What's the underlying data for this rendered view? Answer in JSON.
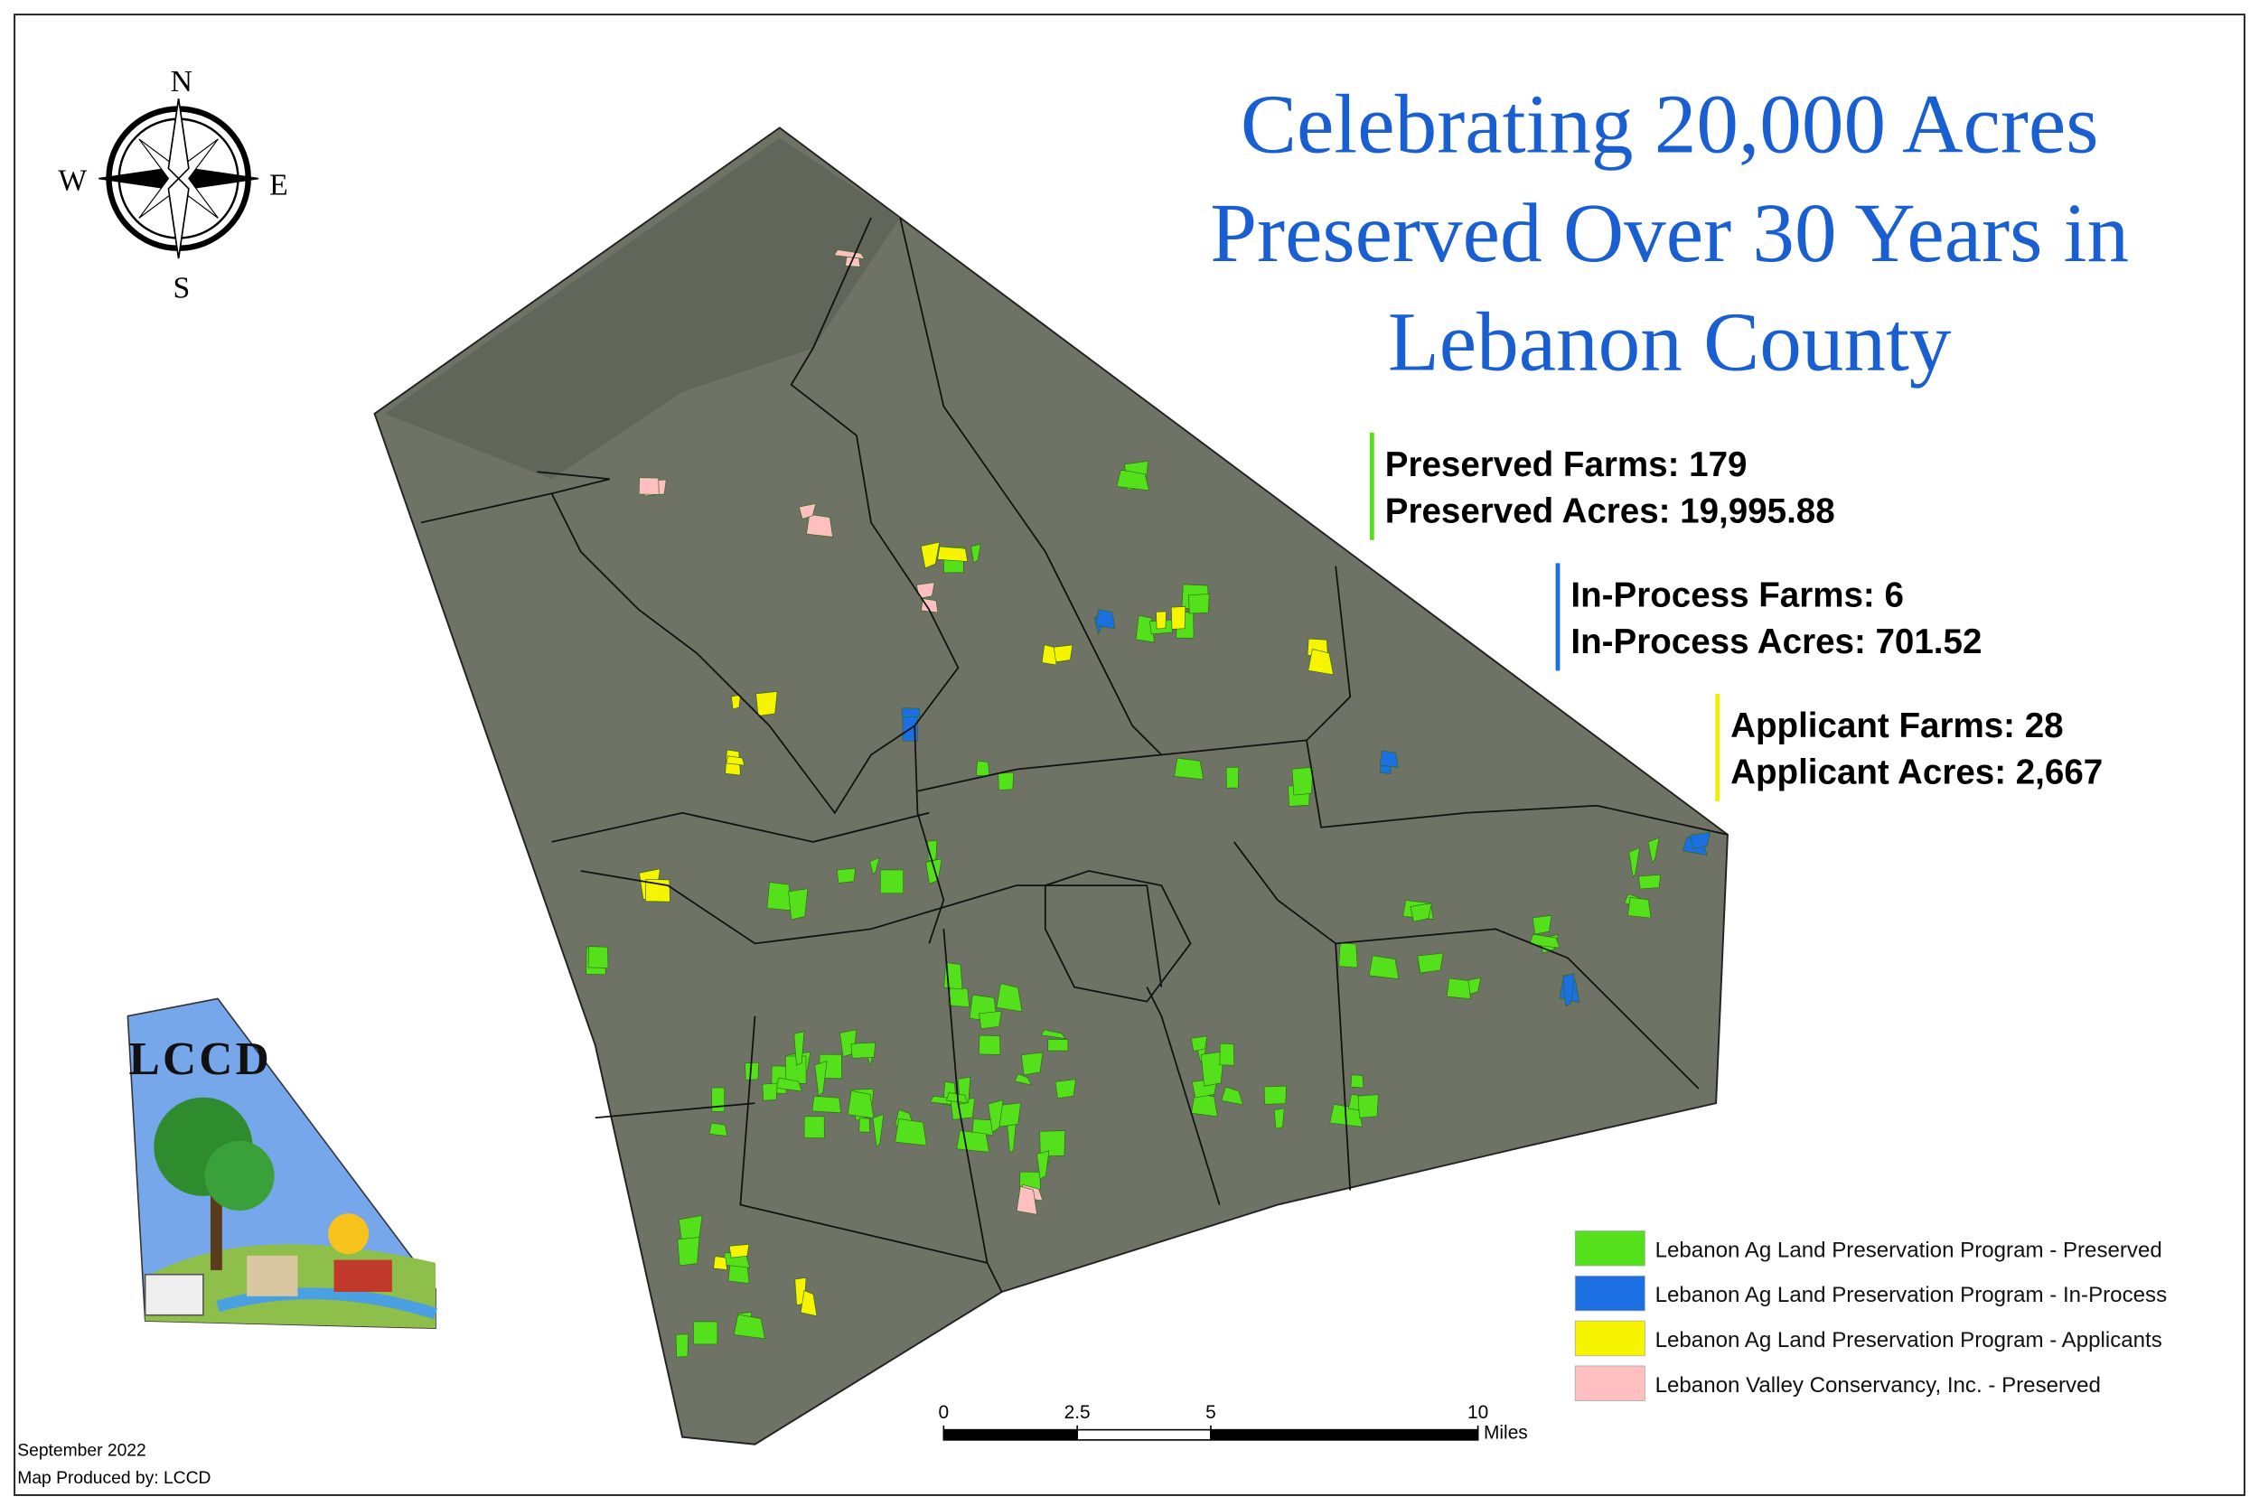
{
  "title": [
    "Celebrating 20,000 Acres",
    "Preserved Over 30 Years in",
    "Lebanon County"
  ],
  "compass": {
    "north": "N",
    "south": "S",
    "east": "E",
    "west": "W"
  },
  "stats": [
    {
      "color": "#55e01c",
      "lines": [
        "Preserved Farms: 179",
        "Preserved Acres: 19,995.88"
      ]
    },
    {
      "color": "#1c6fe0",
      "lines": [
        "In-Process Farms: 6",
        "In-Process Acres: 701.52"
      ]
    },
    {
      "color": "#f2ee00",
      "lines": [
        "Applicant Farms: 28",
        "Applicant Acres: 2,667"
      ]
    }
  ],
  "legend": [
    {
      "color": "#55e01c",
      "label": "Lebanon Ag Land Preservation Program - Preserved"
    },
    {
      "color": "#1c6fe0",
      "label": "Lebanon Ag Land Preservation Program - In-Process"
    },
    {
      "color": "#f7f400",
      "label": "Lebanon Ag Land Preservation Program - Applicants"
    },
    {
      "color": "#ffbfc0",
      "label": "Lebanon Valley Conservancy, Inc. - Preserved"
    }
  ],
  "scale_bar": {
    "ticks": [
      0,
      2.5,
      5,
      10
    ],
    "unit": "Miles"
  },
  "logo": "LCCD",
  "footer": [
    "September 2022",
    "Map Produced by: LCCD"
  ]
}
